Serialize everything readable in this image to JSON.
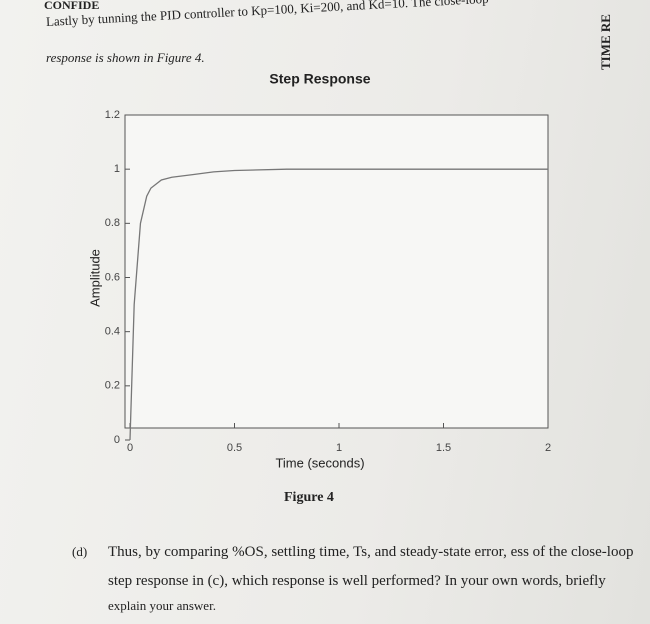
{
  "header": {
    "mark": "CONFIDE"
  },
  "intro": [
    "Lastly by tunning the PID controller to Kp=100, Ki=200, and Kd=10. The close-loop",
    "response is shown in Figure 4."
  ],
  "side_text": "TIME RE",
  "figure_caption": "Figure 4",
  "question": {
    "number": "(d)",
    "lines": [
      "Thus, by comparing %OS, settling time, Ts, and steady-state error, ess of the close-loop",
      "step response in (c), which response is well performed? In your own words, briefly",
      "explain your answer."
    ]
  },
  "chart_data": {
    "type": "line",
    "title": "Step Response",
    "x_label": "Time (seconds)",
    "y_label": "Amplitude",
    "x": [
      0,
      0.02,
      0.05,
      0.08,
      0.1,
      0.15,
      0.2,
      0.3,
      0.4,
      0.5,
      0.75,
      1,
      1.5,
      2
    ],
    "series": [
      {
        "name": "Amplitude",
        "color": "#777777",
        "values": [
          0,
          0.5,
          0.8,
          0.9,
          0.93,
          0.96,
          0.97,
          0.98,
          0.99,
          0.995,
          1,
          1,
          1,
          1
        ]
      }
    ],
    "xlim": [
      0,
      2
    ],
    "ylim": [
      0,
      1.2
    ],
    "xticks": [
      0,
      0.5,
      1,
      1.5,
      2
    ],
    "yticks": [
      0,
      0.2,
      0.4,
      0.6,
      0.8,
      1,
      1.2
    ]
  }
}
